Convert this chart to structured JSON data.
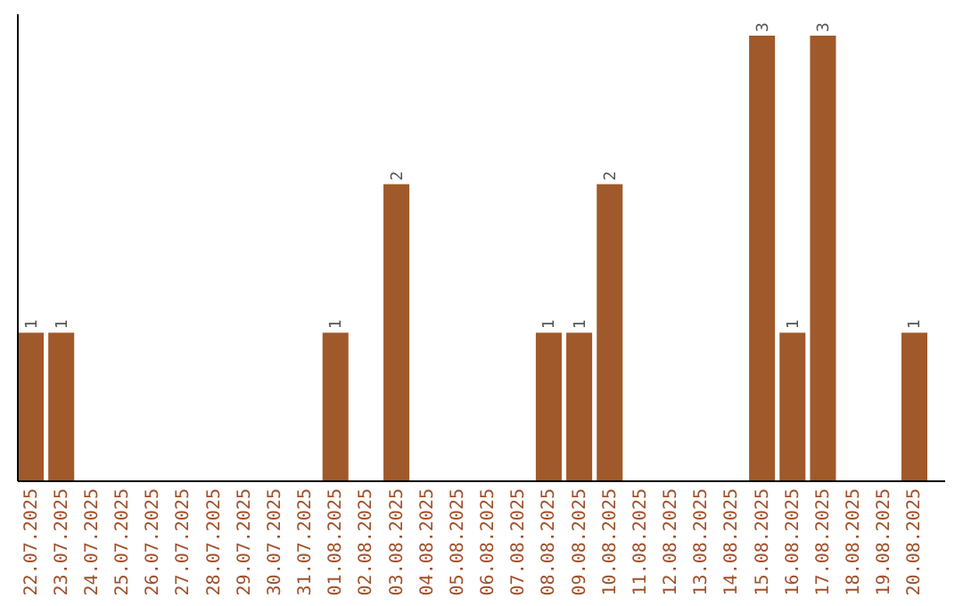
{
  "chart_data": {
    "type": "bar",
    "categories": [
      "22.07.2025",
      "23.07.2025",
      "24.07.2025",
      "25.07.2025",
      "26.07.2025",
      "27.07.2025",
      "28.07.2025",
      "29.07.2025",
      "30.07.2025",
      "31.07.2025",
      "01.08.2025",
      "02.08.2025",
      "03.08.2025",
      "04.08.2025",
      "05.08.2025",
      "06.08.2025",
      "07.08.2025",
      "08.08.2025",
      "09.08.2025",
      "10.08.2025",
      "11.08.2025",
      "12.08.2025",
      "13.08.2025",
      "14.08.2025",
      "15.08.2025",
      "16.08.2025",
      "17.08.2025",
      "18.08.2025",
      "19.08.2025",
      "20.08.2025"
    ],
    "values": [
      1,
      1,
      0,
      0,
      0,
      0,
      0,
      0,
      0,
      0,
      1,
      0,
      2,
      0,
      0,
      0,
      0,
      1,
      1,
      2,
      0,
      0,
      0,
      0,
      3,
      1,
      3,
      0,
      0,
      1
    ],
    "value_labels": [
      "1",
      "1",
      null,
      null,
      null,
      null,
      null,
      null,
      null,
      null,
      "1",
      null,
      "2",
      null,
      null,
      null,
      null,
      "1",
      "1",
      "2",
      null,
      null,
      null,
      null,
      "3",
      "1",
      "3",
      null,
      null,
      "1"
    ],
    "color": "#a0592a"
  }
}
